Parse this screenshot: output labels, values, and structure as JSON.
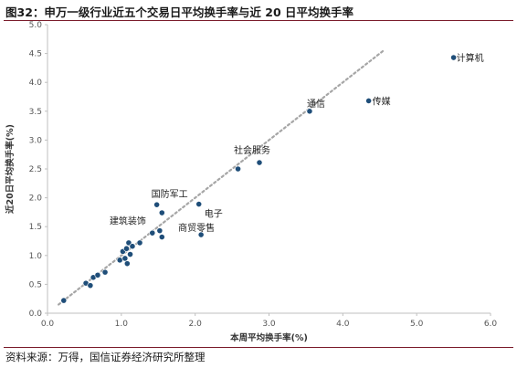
{
  "title": "图32：申万一级行业近五个交易日平均换手率与近 20 日平均换手率",
  "source": "资料来源：万得，国信证券经济研究所整理",
  "colors": {
    "point": "#1f4e79",
    "trend": "#a6a6a6",
    "rule": "#7a1c2b"
  },
  "chart_data": {
    "type": "scatter",
    "xlabel": "本周平均换手率(%)",
    "ylabel": "近20日平均换手率(%)",
    "xlim": [
      0,
      6
    ],
    "ylim": [
      0,
      5
    ],
    "xticks": [
      "0.0",
      "1.0",
      "2.0",
      "3.0",
      "4.0",
      "5.0",
      "6.0"
    ],
    "yticks": [
      "0.0",
      "0.5",
      "1.0",
      "1.5",
      "2.0",
      "2.5",
      "3.0",
      "3.5",
      "4.0",
      "4.5",
      "5.0"
    ],
    "trendline": {
      "x": [
        0.15,
        4.55
      ],
      "y": [
        0.15,
        4.55
      ]
    },
    "points": [
      {
        "x": 0.22,
        "y": 0.22
      },
      {
        "x": 0.52,
        "y": 0.52
      },
      {
        "x": 0.58,
        "y": 0.48
      },
      {
        "x": 0.62,
        "y": 0.62
      },
      {
        "x": 0.68,
        "y": 0.66
      },
      {
        "x": 0.78,
        "y": 0.71
      },
      {
        "x": 0.98,
        "y": 0.92
      },
      {
        "x": 1.02,
        "y": 1.07
      },
      {
        "x": 1.05,
        "y": 0.95
      },
      {
        "x": 1.07,
        "y": 1.12
      },
      {
        "x": 1.08,
        "y": 0.86
      },
      {
        "x": 1.1,
        "y": 1.22
      },
      {
        "x": 1.12,
        "y": 1.02
      },
      {
        "x": 1.15,
        "y": 1.16
      },
      {
        "x": 1.25,
        "y": 1.22
      },
      {
        "x": 1.42,
        "y": 1.39
      },
      {
        "x": 1.52,
        "y": 1.43,
        "label": "建筑装饰"
      },
      {
        "x": 1.55,
        "y": 1.32
      },
      {
        "x": 1.48,
        "y": 1.88,
        "label": "国防军工"
      },
      {
        "x": 1.55,
        "y": 1.74
      },
      {
        "x": 2.05,
        "y": 1.89,
        "label": "电子"
      },
      {
        "x": 2.08,
        "y": 1.36,
        "label": "商贸零售"
      },
      {
        "x": 2.58,
        "y": 2.5
      },
      {
        "x": 2.87,
        "y": 2.61,
        "label": "社会服务"
      },
      {
        "x": 3.55,
        "y": 3.5,
        "label": "通信"
      },
      {
        "x": 4.35,
        "y": 3.68,
        "label": "传媒"
      },
      {
        "x": 5.5,
        "y": 4.43,
        "label": "计算机"
      }
    ]
  }
}
